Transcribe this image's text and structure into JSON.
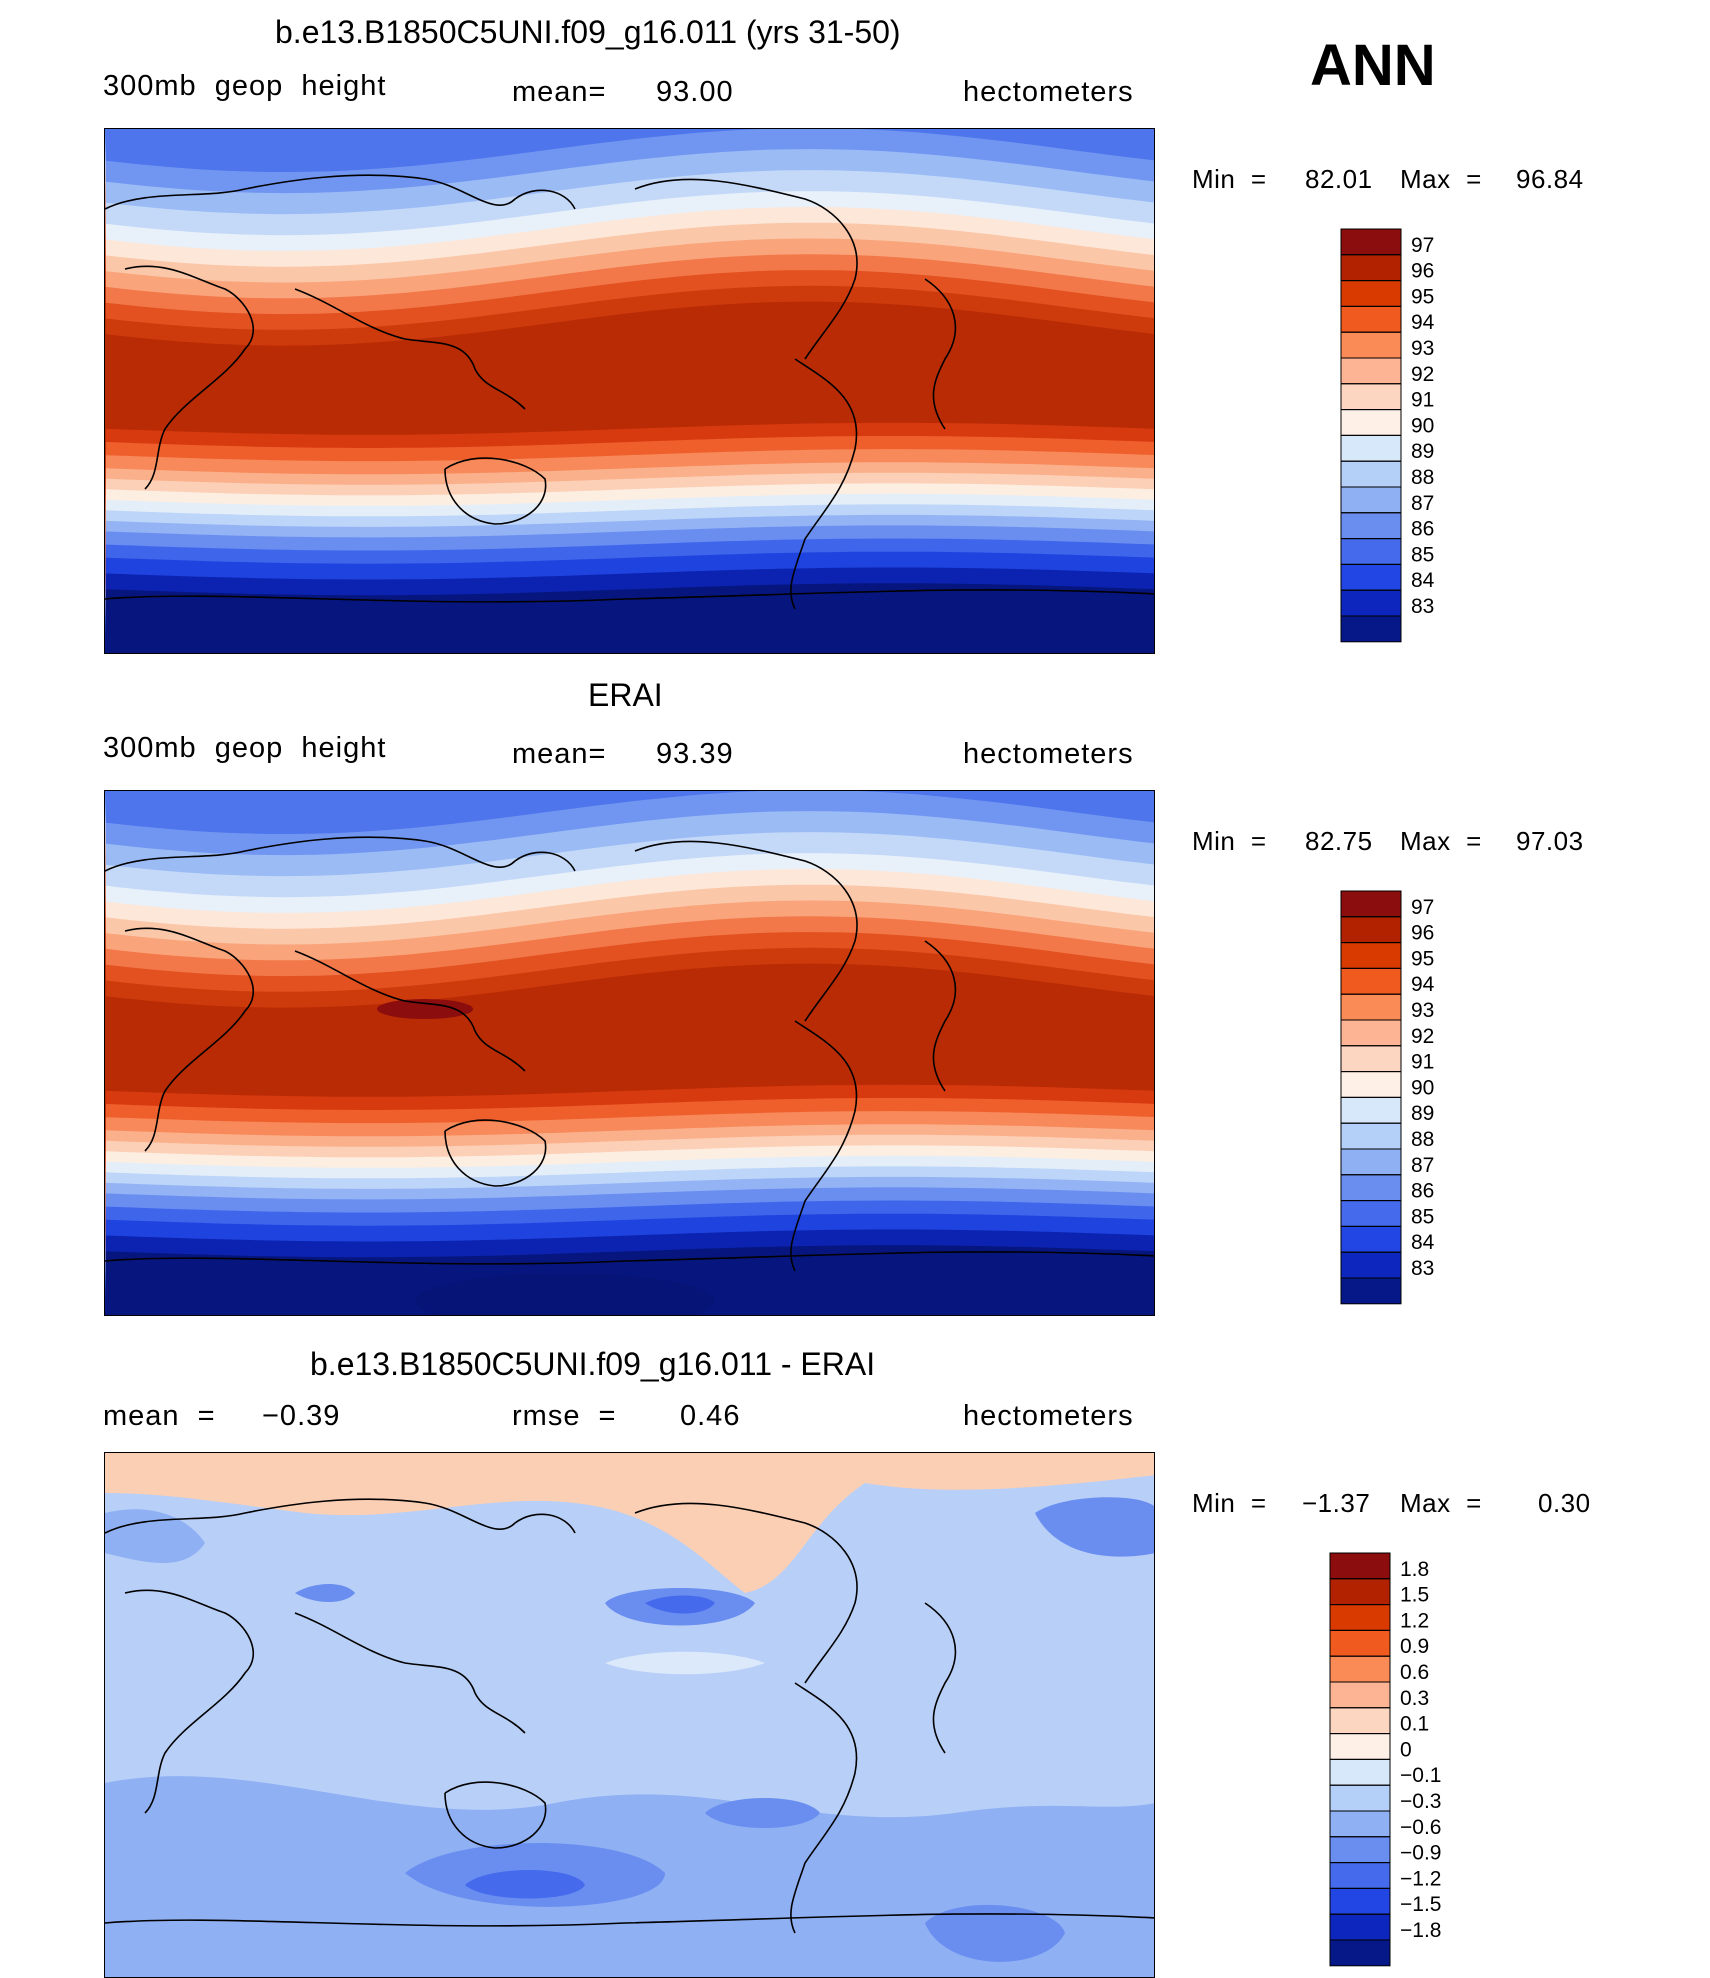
{
  "season": "ANN",
  "chart_data": [
    {
      "type": "heatmap",
      "panel": "model",
      "title": "b.e13.B1850C5UNI.f09_g16.011 (yrs 31-50)",
      "variable": "300mb  geop  height",
      "mean_label": "mean=",
      "mean_value": "93.00",
      "units": "hectometers",
      "min_label": "Min  =",
      "min_value": "82.01",
      "max_label": "Max  =",
      "max_value": "96.84",
      "colorbar_levels": [
        "97",
        "96",
        "95",
        "94",
        "93",
        "92",
        "91",
        "90",
        "89",
        "88",
        "87",
        "86",
        "85",
        "84",
        "83"
      ],
      "colorbar_colors": [
        "#8c0d0d",
        "#b22200",
        "#d83a00",
        "#f05a1e",
        "#fa8a56",
        "#fcb494",
        "#fdd6c2",
        "#fef0e6",
        "#d7e8fb",
        "#b4cff8",
        "#8fb0f3",
        "#6a8ef0",
        "#456aec",
        "#2246e3",
        "#0d27be",
        "#061888"
      ]
    },
    {
      "type": "heatmap",
      "panel": "observation",
      "title": "ERAI",
      "variable": "300mb  geop  height",
      "mean_label": "mean=",
      "mean_value": "93.39",
      "units": "hectometers",
      "min_label": "Min  =",
      "min_value": "82.75",
      "max_label": "Max  =",
      "max_value": "97.03",
      "colorbar_levels": [
        "97",
        "96",
        "95",
        "94",
        "93",
        "92",
        "91",
        "90",
        "89",
        "88",
        "87",
        "86",
        "85",
        "84",
        "83"
      ],
      "colorbar_colors": [
        "#8c0d0d",
        "#b22200",
        "#d83a00",
        "#f05a1e",
        "#fa8a56",
        "#fcb494",
        "#fdd6c2",
        "#fef0e6",
        "#d7e8fb",
        "#b4cff8",
        "#8fb0f3",
        "#6a8ef0",
        "#456aec",
        "#2246e3",
        "#0d27be",
        "#061888"
      ]
    },
    {
      "type": "heatmap",
      "panel": "difference",
      "title": "b.e13.B1850C5UNI.f09_g16.011 - ERAI",
      "left_label": "mean  =",
      "left_value": "−0.39",
      "mid_label": "rmse  =",
      "mid_value": "0.46",
      "units": "hectometers",
      "min_label": "Min  =",
      "min_value": "−1.37",
      "max_label": "Max  =",
      "max_value": "0.30",
      "colorbar_levels": [
        "1.8",
        "1.5",
        "1.2",
        "0.9",
        "0.6",
        "0.3",
        "0.1",
        "0",
        "−0.1",
        "−0.3",
        "−0.6",
        "−0.9",
        "−1.2",
        "−1.5",
        "−1.8"
      ],
      "colorbar_colors": [
        "#8c0d0d",
        "#b22200",
        "#d83a00",
        "#f05a1e",
        "#fa8a56",
        "#fcb494",
        "#fdd6c2",
        "#fef0e6",
        "#d7e8fb",
        "#b4cff8",
        "#8fb0f3",
        "#6a8ef0",
        "#456aec",
        "#2246e3",
        "#0d27be",
        "#061888"
      ]
    }
  ]
}
